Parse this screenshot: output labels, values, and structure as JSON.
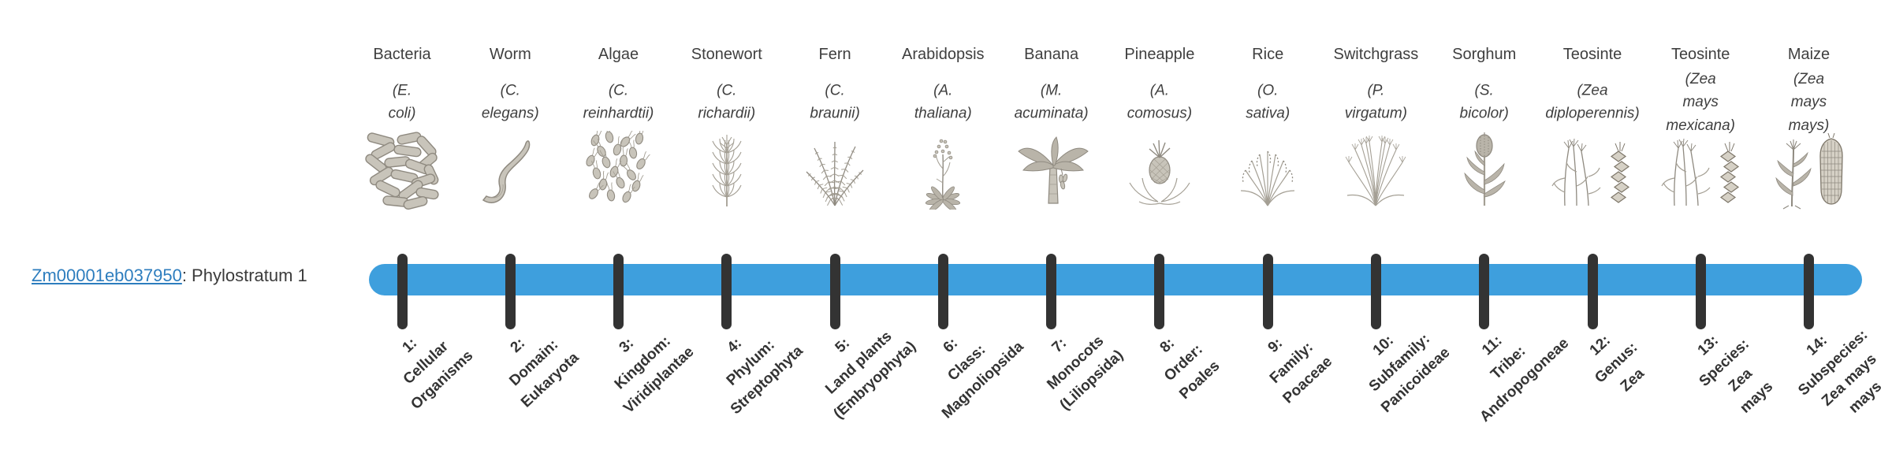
{
  "gene_label": {
    "link_text": "Zm00001eb037950",
    "rest": ": Phylostratum 1"
  },
  "palette": {
    "bar_blue": "#3e9fdd",
    "tick_dark": "#333333",
    "text_dark": "#3f3f3f",
    "link_blue": "#2d7dbe",
    "illustration_gray": "#8f8a80"
  },
  "columns": [
    {
      "index": 1,
      "name": "Bacteria",
      "species": "(E. coli)",
      "icon": "bacteria-icon",
      "stratum_label": "1:\nCellular\nOrganisms"
    },
    {
      "index": 2,
      "name": "Worm",
      "species": "(C. elegans)",
      "icon": "worm-icon",
      "stratum_label": "2:\nDomain:\nEukaryota"
    },
    {
      "index": 3,
      "name": "Algae",
      "species": "(C.\nreinhardtii)",
      "icon": "algae-icon",
      "stratum_label": "3:\nKingdom:\nViridiplantae"
    },
    {
      "index": 4,
      "name": "Stonewort",
      "species": "(C. richardii)",
      "icon": "stonewort-icon",
      "stratum_label": "4:\nPhylum:\nStreptophyta"
    },
    {
      "index": 5,
      "name": "Fern",
      "species": "(C. braunii)",
      "icon": "fern-icon",
      "stratum_label": "5:\nLand plants\n(Embryophyta)"
    },
    {
      "index": 6,
      "name": "Arabidopsis",
      "species": "(A. thaliana)",
      "icon": "arabidopsis-icon",
      "stratum_label": "6:\nClass:\nMagnoliopsida"
    },
    {
      "index": 7,
      "name": "Banana",
      "species": "(M.\nacuminata)",
      "icon": "banana-icon",
      "stratum_label": "7:\nMonocots\n(Liliopsida)"
    },
    {
      "index": 8,
      "name": "Pineapple",
      "species": "(A.\ncomosus)",
      "icon": "pineapple-icon",
      "stratum_label": "8:\nOrder:\nPoales"
    },
    {
      "index": 9,
      "name": "Rice",
      "species": "(O. sativa)",
      "icon": "rice-icon",
      "stratum_label": "9:\nFamily:\nPoaceae"
    },
    {
      "index": 10,
      "name": "Switchgrass",
      "species": "(P.\nvirgatum)",
      "icon": "switchgrass-icon",
      "stratum_label": "10:\nSubfamily:\nPanicoideae"
    },
    {
      "index": 11,
      "name": "Sorghum",
      "species": "(S. bicolor)",
      "icon": "sorghum-icon",
      "stratum_label": "11:\nTribe:\nAndropogoneae"
    },
    {
      "index": 12,
      "name": "Teosinte",
      "species": "(Zea\ndiploperennis)",
      "icon": "teosinte-diploperennis-icon",
      "stratum_label": "12:\nGenus:\nZea"
    },
    {
      "index": 13,
      "name": "Teosinte",
      "species": "(Zea mays\nmexicana)",
      "icon": "teosinte-mexicana-icon",
      "stratum_label": "13:\nSpecies:\nZea\nmays"
    },
    {
      "index": 14,
      "name": "Maize",
      "species": "(Zea mays\nmays)",
      "icon": "maize-icon",
      "stratum_label": "14:\nSubspecies:\nZea mays\nmays"
    }
  ]
}
